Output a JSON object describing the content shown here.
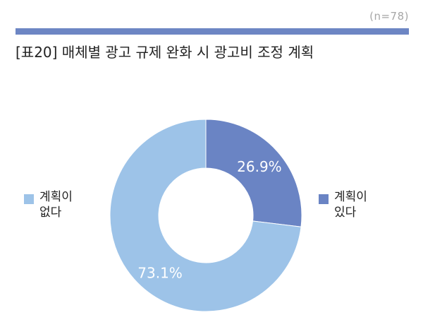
{
  "sample_size": "(n=78)",
  "title": "[표20] 매체별 광고 규제 완화 시 광고비 조정 계획",
  "colors": {
    "bar": "#6d86c4",
    "plan_yes": "#6a84c4",
    "plan_no": "#9dc3e8",
    "label_on_dark": "#ffffff",
    "label_on_light": "#ffffff"
  },
  "legend": {
    "left": {
      "label": "계획이 없다"
    },
    "right": {
      "label": "계획이 있다"
    }
  },
  "chart_data": {
    "type": "pie",
    "donut": true,
    "title": "[표20] 매체별 광고 규제 완화 시 광고비 조정 계획",
    "categories": [
      "계획이 있다",
      "계획이 없다"
    ],
    "values": [
      26.9,
      73.1
    ],
    "value_labels": [
      "26.9%",
      "73.1%"
    ],
    "unit": "%",
    "start_angle": "12 o'clock",
    "direction": "clockwise",
    "legend": "left and right of chart"
  }
}
